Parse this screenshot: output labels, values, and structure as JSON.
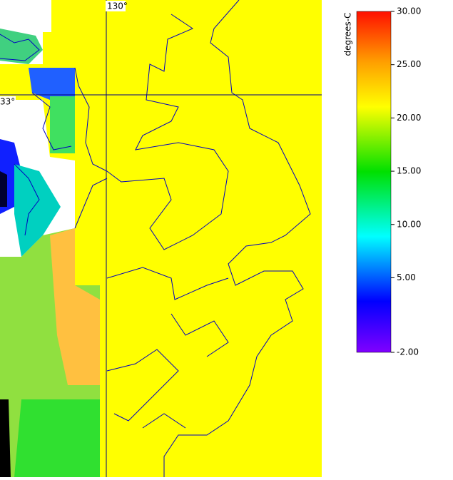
{
  "map": {
    "lon_label": "130°",
    "lat_label": "33°"
  },
  "colorbar": {
    "title": "degrees-C",
    "range": [
      -2,
      30
    ],
    "ticks": [
      {
        "value": 30,
        "label": "30.00"
      },
      {
        "value": 25,
        "label": "25.00"
      },
      {
        "value": 20,
        "label": "20.00"
      },
      {
        "value": 15,
        "label": "15.00"
      },
      {
        "value": 10,
        "label": "10.00"
      },
      {
        "value": 5,
        "label": "5.00"
      },
      {
        "value": -2,
        "label": "-2.00"
      }
    ]
  }
}
